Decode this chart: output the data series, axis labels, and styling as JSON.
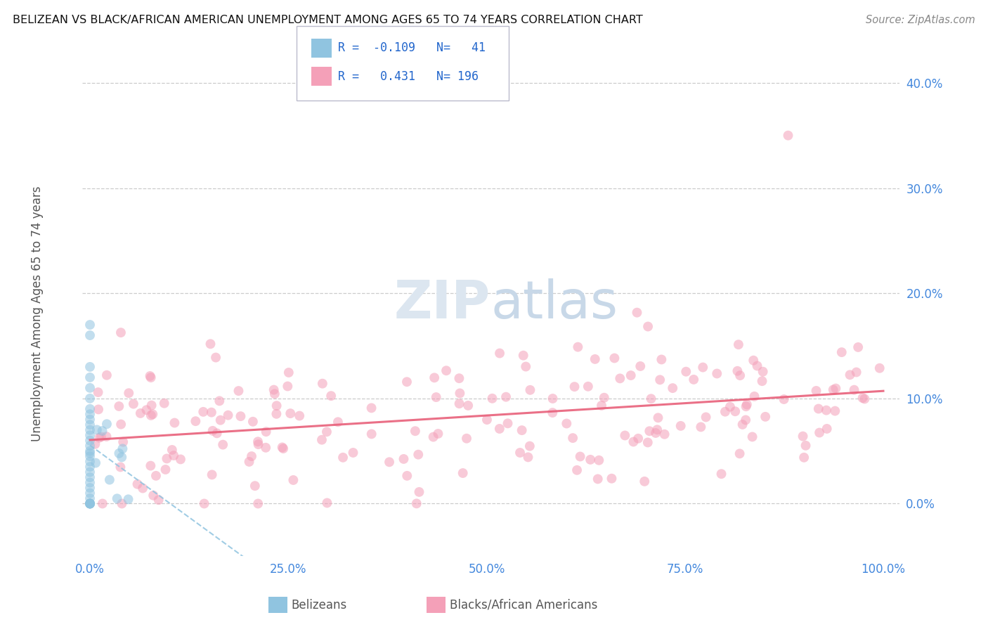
{
  "title": "BELIZEAN VS BLACK/AFRICAN AMERICAN UNEMPLOYMENT AMONG AGES 65 TO 74 YEARS CORRELATION CHART",
  "source": "Source: ZipAtlas.com",
  "ylabel": "Unemployment Among Ages 65 to 74 years",
  "xlim": [
    -0.01,
    1.02
  ],
  "ylim": [
    -0.05,
    0.43
  ],
  "yticks": [
    0.0,
    0.1,
    0.2,
    0.3,
    0.4
  ],
  "ytick_labels": [
    "0.0%",
    "10.0%",
    "20.0%",
    "30.0%",
    "40.0%"
  ],
  "xticks": [
    0.0,
    0.25,
    0.5,
    0.75,
    1.0
  ],
  "xtick_labels": [
    "0.0%",
    "25.0%",
    "50.0%",
    "75.0%",
    "100.0%"
  ],
  "belizean_R": -0.109,
  "belizean_N": 41,
  "black_R": 0.431,
  "black_N": 196,
  "blue_dot_color": "#90c4e0",
  "pink_dot_color": "#f4a0b8",
  "blue_line_color": "#90c4e0",
  "pink_line_color": "#e8607a",
  "background_color": "#ffffff",
  "grid_color": "#cccccc",
  "title_color": "#111111",
  "tick_label_color": "#4488dd",
  "watermark_color": "#dce6f0",
  "legend_text_color": "#2266cc"
}
